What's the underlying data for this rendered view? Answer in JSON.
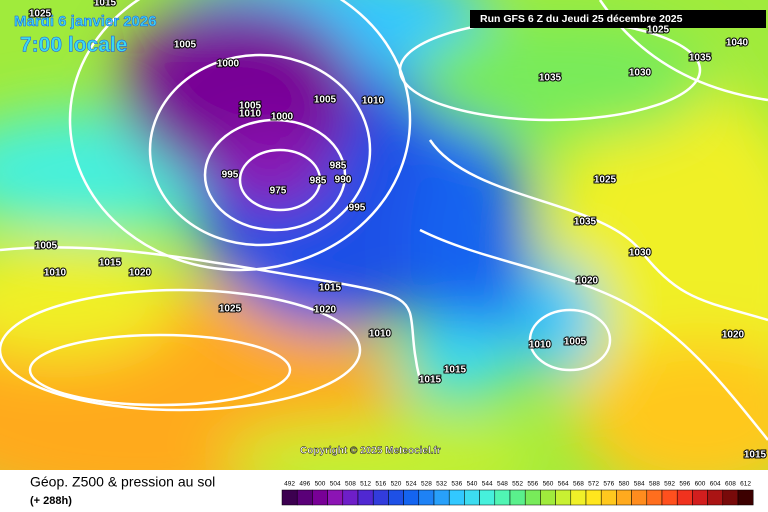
{
  "header": {
    "date": "Mardi 6 janvier 2026",
    "time": "7:00 locale",
    "run": "Run GFS 6 Z du Jeudi 25 décembre 2025"
  },
  "isobar_labels": [
    "1025",
    "1015",
    "1005",
    "1000",
    "1005",
    "1010",
    "1005",
    "1010",
    "1000",
    "995",
    "975",
    "985",
    "985",
    "990",
    "995",
    "1005",
    "1010",
    "1015",
    "1020",
    "1025",
    "1015",
    "1020",
    "1010",
    "1015",
    "1015",
    "1035",
    "1030",
    "1035",
    "1040",
    "1025",
    "1025",
    "1035",
    "1030",
    "1020",
    "1010",
    "1005",
    "1020",
    "1015"
  ],
  "copyright": "Copyright © 2025 Meteociel.fr",
  "legend": {
    "title": "Géop. Z500 & pression au sol",
    "lead": "(+ 288h)",
    "labels": [
      492,
      496,
      500,
      504,
      508,
      512,
      516,
      520,
      524,
      528,
      532,
      536,
      540,
      544,
      548,
      552,
      556,
      560,
      564,
      568,
      572,
      576,
      580,
      584,
      588,
      592,
      596,
      600,
      604,
      608,
      612
    ],
    "colors": [
      "#3c0050",
      "#5a0078",
      "#780096",
      "#8c14b4",
      "#6e1ec8",
      "#5028d2",
      "#323cdc",
      "#1e50e6",
      "#1464f0",
      "#1e82f5",
      "#28a0fa",
      "#32c8ff",
      "#3cdcf0",
      "#46f0dc",
      "#50f5b4",
      "#5af08c",
      "#78eb5a",
      "#a0eb3c",
      "#c8f032",
      "#f0f028",
      "#ffe61e",
      "#ffc81e",
      "#ffaa1e",
      "#ff8c1e",
      "#ff6e1e",
      "#ff501e",
      "#f0321e",
      "#d21e1e",
      "#aa1414",
      "#780a0a",
      "#3c0000"
    ]
  }
}
